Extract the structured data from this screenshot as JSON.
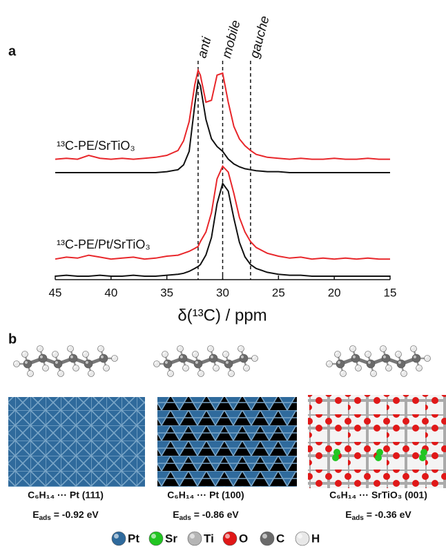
{
  "chart_data": {
    "type": "line",
    "panel_label": "a",
    "x_label": "δ(¹³C) / ppm",
    "xlim": [
      45,
      15
    ],
    "xticks": [
      45,
      40,
      35,
      30,
      25,
      20,
      15
    ],
    "x": [
      45,
      44,
      43,
      42,
      41,
      40,
      39,
      38,
      37,
      36,
      35,
      34,
      33.5,
      33,
      32.5,
      32.2,
      32,
      31.5,
      31,
      30.5,
      30,
      29.5,
      29,
      28.5,
      28,
      27.5,
      27,
      26,
      25,
      24,
      23,
      22,
      21,
      20,
      19,
      18,
      17,
      16,
      15
    ],
    "reference_lines": [
      {
        "label": "anti",
        "x": 32.2
      },
      {
        "label": "mobile",
        "x": 30
      },
      {
        "label": "gauche",
        "x": 27.5
      }
    ],
    "samples": [
      {
        "label": "¹³C-PE/SrTiO₃",
        "traces": [
          {
            "color": "#e8262a",
            "values": [
              1,
              2,
              1,
              5,
              2,
              1,
              2,
              1,
              2,
              3,
              5,
              10,
              20,
              40,
              78,
              93,
              88,
              60,
              62,
              88,
              90,
              60,
              35,
              22,
              15,
              10,
              6,
              3,
              2,
              1,
              2,
              1,
              1,
              2,
              1,
              1,
              2,
              1,
              1
            ]
          },
          {
            "color": "#111111",
            "values": [
              0,
              0,
              0,
              0,
              0,
              0,
              0,
              0,
              0,
              0,
              1,
              3,
              8,
              22,
              70,
              95,
              90,
              55,
              35,
              27,
              22,
              14,
              9,
              6,
              4,
              3,
              2,
              1,
              1,
              0,
              0,
              0,
              0,
              0,
              0,
              0,
              0,
              0,
              0
            ]
          }
        ]
      },
      {
        "label": "¹³C-PE/Pt/SrTiO₃",
        "traces": [
          {
            "color": "#e8262a",
            "values": [
              2,
              4,
              3,
              6,
              4,
              2,
              3,
              4,
              2,
              3,
              5,
              6,
              8,
              10,
              13,
              15,
              20,
              30,
              50,
              85,
              98,
              92,
              70,
              45,
              30,
              20,
              14,
              8,
              5,
              3,
              4,
              2,
              3,
              2,
              3,
              2,
              3,
              2,
              2
            ]
          },
          {
            "color": "#111111",
            "values": [
              0,
              1,
              0,
              0,
              1,
              0,
              0,
              1,
              0,
              0,
              1,
              2,
              3,
              5,
              8,
              10,
              12,
              22,
              40,
              75,
              96,
              88,
              60,
              35,
              20,
              12,
              8,
              4,
              2,
              1,
              1,
              0,
              0,
              0,
              0,
              0,
              0,
              0,
              0
            ]
          }
        ]
      }
    ]
  },
  "panel_b": {
    "panel_label": "b",
    "structures": [
      {
        "caption": "C₆H₁₄ ··· Pt (111)",
        "energy": {
          "symbol": "E",
          "sub": "ads",
          "text": " = -0.92 eV"
        }
      },
      {
        "caption": "C₆H₁₄ ··· Pt (100)",
        "energy": {
          "symbol": "E",
          "sub": "ads",
          "text": " = -0.86 eV"
        }
      },
      {
        "caption": "C₆H₁₄ ··· SrTiO₃ (001)",
        "energy": {
          "symbol": "E",
          "sub": "ads",
          "text": " = -0.36 eV"
        }
      }
    ],
    "legend": [
      {
        "label": "Pt",
        "color": "#2f6a9c"
      },
      {
        "label": "Sr",
        "color": "#22c522"
      },
      {
        "label": "Ti",
        "color": "#b5b5b5"
      },
      {
        "label": "O",
        "color": "#e01818"
      },
      {
        "label": "C",
        "color": "#6a6a6a"
      },
      {
        "label": "H",
        "color": "#e8e8e8"
      }
    ]
  }
}
